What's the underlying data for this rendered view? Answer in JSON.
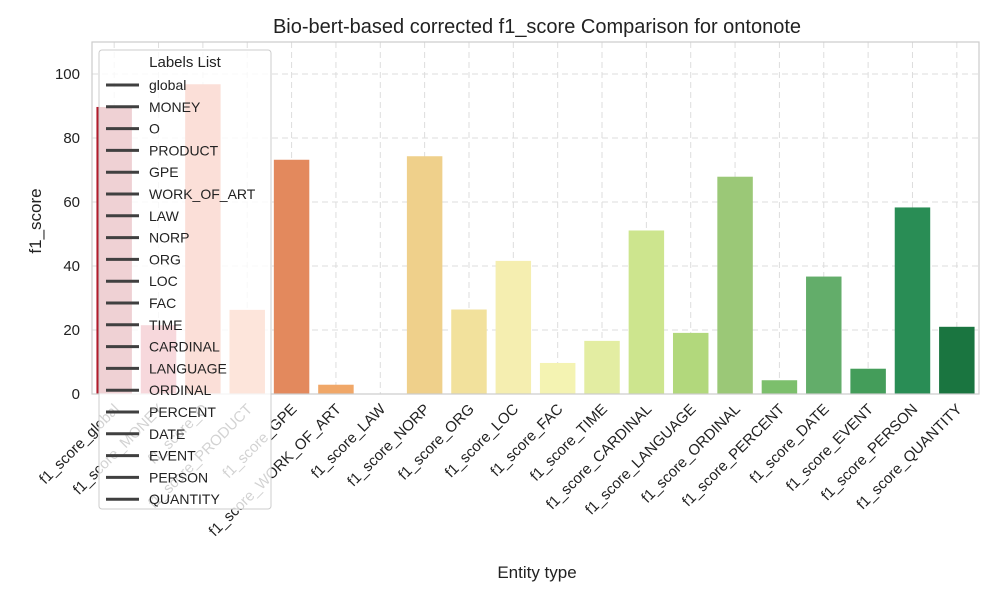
{
  "chart_data": {
    "type": "bar",
    "title": "Bio-bert-based corrected f1_score Comparison for ontonote",
    "xlabel": "Entity type",
    "ylabel": "f1_score",
    "ylim": [
      0,
      110
    ],
    "yticks": [
      0,
      20,
      40,
      60,
      80,
      100
    ],
    "grid": true,
    "grid_style": "dashed",
    "categories": [
      "f1_score_global",
      "f1_score_MONEY",
      "f1_score_O",
      "f1_score_PRODUCT",
      "f1_score_GPE",
      "f1_score_WORK_OF_ART",
      "f1_score_LAW",
      "f1_score_NORP",
      "f1_score_ORG",
      "f1_score_LOC",
      "f1_score_FAC",
      "f1_score_TIME",
      "f1_score_CARDINAL",
      "f1_score_LANGUAGE",
      "f1_score_ORDINAL",
      "f1_score_PERCENT",
      "f1_score_DATE",
      "f1_score_EVENT",
      "f1_score_PERSON",
      "f1_score_QUANTITY"
    ],
    "values": [
      89.7,
      21.5,
      96.8,
      26.3,
      73.2,
      2.9,
      0.0,
      74.3,
      26.4,
      41.6,
      9.7,
      16.6,
      51.1,
      19.1,
      67.9,
      4.3,
      36.7,
      7.9,
      58.3,
      21.0
    ],
    "colors": [
      "#b11c2c",
      "#d53e4f",
      "#e8623f",
      "#f47d4c",
      "#e3895d",
      "#f0a768",
      "#f6c379",
      "#efd08b",
      "#f2e19c",
      "#f5eeb0",
      "#f4f3b2",
      "#e3eda2",
      "#cde58e",
      "#b2d87c",
      "#9bc877",
      "#7cbf6c",
      "#63ad6a",
      "#449d5a",
      "#298d55",
      "#1a7540"
    ],
    "legend": {
      "title": "Labels List",
      "placement": "upper-left",
      "entries": [
        "global",
        "MONEY",
        "O",
        "PRODUCT",
        "GPE",
        "WORK_OF_ART",
        "LAW",
        "NORP",
        "ORG",
        "LOC",
        "FAC",
        "TIME",
        "CARDINAL",
        "LANGUAGE",
        "ORDINAL",
        "PERCENT",
        "DATE",
        "EVENT",
        "PERSON",
        "QUANTITY"
      ]
    }
  }
}
